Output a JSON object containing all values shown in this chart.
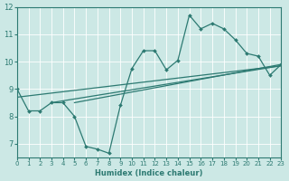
{
  "xlabel": "Humidex (Indice chaleur)",
  "bg_color": "#cce8e5",
  "line_color": "#2d7a72",
  "grid_color": "#ffffff",
  "xlim": [
    0,
    23
  ],
  "ylim": [
    6.5,
    12
  ],
  "xticks": [
    0,
    1,
    2,
    3,
    4,
    5,
    6,
    7,
    8,
    9,
    10,
    11,
    12,
    13,
    14,
    15,
    16,
    17,
    18,
    19,
    20,
    21,
    22,
    23
  ],
  "yticks": [
    7,
    8,
    9,
    10,
    11,
    12
  ],
  "line1_x": [
    0,
    1,
    2,
    3,
    4,
    5,
    6,
    7,
    8,
    9,
    10,
    11,
    12,
    13,
    14,
    15,
    16,
    17,
    18,
    19,
    20,
    21,
    22,
    23
  ],
  "line1_y": [
    9.0,
    8.2,
    8.2,
    8.5,
    8.5,
    8.0,
    6.9,
    6.8,
    6.65,
    8.4,
    9.75,
    10.4,
    10.4,
    9.7,
    10.05,
    11.7,
    11.2,
    11.4,
    11.2,
    10.8,
    10.3,
    10.2,
    9.5,
    9.9
  ],
  "line3_x": [
    0,
    23
  ],
  "line3_y": [
    8.7,
    9.85
  ],
  "line4_x": [
    3,
    23
  ],
  "line4_y": [
    8.5,
    9.85
  ],
  "line5_x": [
    5,
    23
  ],
  "line5_y": [
    8.5,
    9.9
  ]
}
